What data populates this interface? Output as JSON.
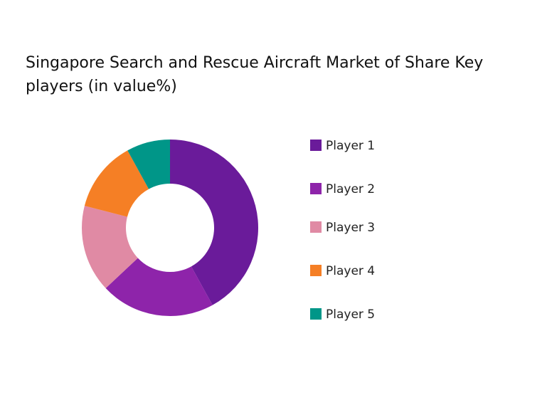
{
  "chart_data": {
    "type": "donut",
    "title": "Singapore Search and Rescue Aircraft Market of Share Key players (in value%)",
    "categories": [
      "Player 1",
      "Player 2",
      "Player 3",
      "Player 4",
      "Player 5"
    ],
    "values": [
      42,
      21,
      16,
      13,
      8
    ],
    "colors": [
      "#6a1b9a",
      "#8e24aa",
      "#e08aa4",
      "#f57f25",
      "#009688"
    ]
  }
}
